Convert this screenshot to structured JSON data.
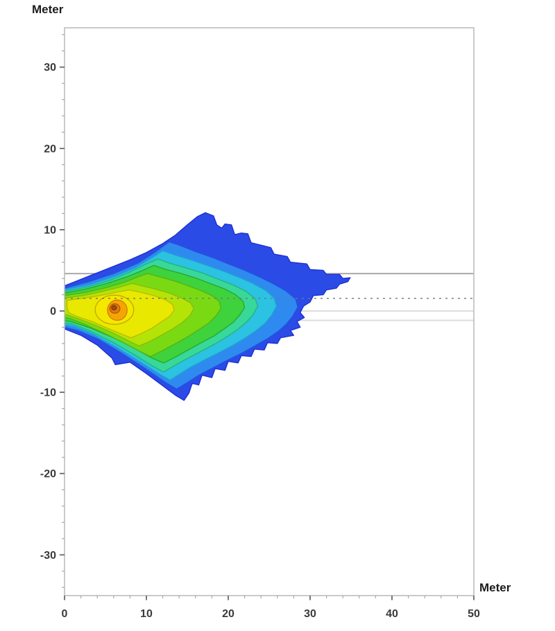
{
  "page": {
    "background": "#ffffff"
  },
  "chart_data": {
    "type": "heatmap",
    "subtype": "filled-contour-map",
    "title": "",
    "x_axis": {
      "label": "Meter",
      "min": 0,
      "max": 50,
      "minor_step": 2,
      "ticks": {
        "values": [
          0,
          10,
          20,
          30,
          40,
          50
        ],
        "labels": [
          "0",
          "10",
          "20",
          "30",
          "40",
          "50"
        ]
      }
    },
    "y_axis": {
      "label": "Meter",
      "min": -35,
      "max": 34.8,
      "minor_step": 2,
      "ticks": {
        "values": [
          30,
          20,
          10,
          0,
          -10,
          -20,
          -30
        ],
        "labels": [
          "30",
          "20",
          "10",
          "0",
          "-10",
          "-20",
          "-30"
        ]
      }
    },
    "reference_lines": [
      {
        "y": 4.6,
        "style": "solid",
        "color": "#a9a9a9",
        "width": 2,
        "layer": "under"
      },
      {
        "y": 0.0,
        "style": "solid",
        "color": "#dcdcdc",
        "width": 2,
        "layer": "under"
      },
      {
        "y": -1.15,
        "style": "solid",
        "color": "#dcdcdc",
        "width": 2,
        "layer": "under"
      },
      {
        "y": 1.55,
        "style": "dashed",
        "color": "#757575",
        "width": 1.4,
        "dash": "3 6",
        "layer": "over"
      }
    ],
    "peak": {
      "x": 6.1,
      "y": 0.3
    },
    "contours": [
      {
        "name": "band-1-blue",
        "fill": "#2b4be6",
        "stroke": "#1c2cd2",
        "points": [
          [
            0,
            3.1
          ],
          [
            2,
            3.9
          ],
          [
            4,
            4.7
          ],
          [
            6,
            5.5
          ],
          [
            8,
            6.3
          ],
          [
            10,
            7.2
          ],
          [
            12,
            8.3
          ],
          [
            13.5,
            9.3
          ],
          [
            15,
            10.6
          ],
          [
            16.2,
            11.6
          ],
          [
            17.2,
            12.1
          ],
          [
            18.2,
            11.7
          ],
          [
            18.6,
            10.6
          ],
          [
            19.2,
            10.2
          ],
          [
            19.6,
            10.7
          ],
          [
            20.4,
            10.6
          ],
          [
            20.8,
            9.4
          ],
          [
            21.6,
            9.6
          ],
          [
            22.4,
            9.5
          ],
          [
            22.8,
            8.4
          ],
          [
            24,
            8.1
          ],
          [
            25.2,
            7.8
          ],
          [
            25.6,
            7.0
          ],
          [
            27.2,
            6.7
          ],
          [
            27.6,
            6.0
          ],
          [
            29.6,
            5.8
          ],
          [
            30.0,
            5.1
          ],
          [
            31.6,
            5.0
          ],
          [
            32.0,
            4.5
          ],
          [
            33.6,
            4.5
          ],
          [
            34.0,
            4.0
          ],
          [
            34.9,
            4.1
          ],
          [
            34.6,
            3.6
          ],
          [
            33.6,
            3.3
          ],
          [
            33.2,
            2.8
          ],
          [
            32.0,
            2.6
          ],
          [
            31.6,
            2.0
          ],
          [
            30.4,
            1.9
          ],
          [
            30.0,
            1.1
          ],
          [
            29.2,
            0.6
          ],
          [
            28.8,
            -0.2
          ],
          [
            29.3,
            -0.8
          ],
          [
            28.4,
            -1.3
          ],
          [
            28.8,
            -2.0
          ],
          [
            27.6,
            -2.4
          ],
          [
            28.0,
            -3.0
          ],
          [
            26.4,
            -3.3
          ],
          [
            26.0,
            -4.0
          ],
          [
            24.8,
            -3.9
          ],
          [
            24.4,
            -4.8
          ],
          [
            23.2,
            -4.7
          ],
          [
            22.8,
            -5.6
          ],
          [
            21.6,
            -5.5
          ],
          [
            21.2,
            -6.4
          ],
          [
            20.0,
            -6.2
          ],
          [
            19.6,
            -7.3
          ],
          [
            18.4,
            -7.1
          ],
          [
            18.0,
            -8.2
          ],
          [
            16.8,
            -7.9
          ],
          [
            16.4,
            -9.1
          ],
          [
            15.6,
            -8.9
          ],
          [
            15.2,
            -10.1
          ],
          [
            14.6,
            -11.0
          ],
          [
            13.6,
            -10.4
          ],
          [
            12.0,
            -9.2
          ],
          [
            10.0,
            -7.7
          ],
          [
            8.0,
            -6.3
          ],
          [
            6.2,
            -6.6
          ],
          [
            5.8,
            -5.8
          ],
          [
            4.0,
            -4.2
          ],
          [
            2.0,
            -3.0
          ],
          [
            0,
            -2.2
          ]
        ]
      },
      {
        "name": "band-2-skyblue",
        "fill": "#2f8af0",
        "stroke": "#2254dc",
        "points": [
          [
            0,
            2.8
          ],
          [
            3,
            3.6
          ],
          [
            6,
            4.6
          ],
          [
            9,
            5.9
          ],
          [
            11,
            7.2
          ],
          [
            12.8,
            8.5
          ],
          [
            14,
            8.1
          ],
          [
            16,
            7.3
          ],
          [
            18,
            6.6
          ],
          [
            20,
            5.8
          ],
          [
            22,
            5.0
          ],
          [
            24,
            4.1
          ],
          [
            25.6,
            3.3
          ],
          [
            27,
            2.5
          ],
          [
            28.2,
            1.5
          ],
          [
            28.5,
            0.5
          ],
          [
            27.9,
            -0.6
          ],
          [
            27.1,
            -1.6
          ],
          [
            26.1,
            -2.5
          ],
          [
            24.8,
            -3.4
          ],
          [
            23.2,
            -4.3
          ],
          [
            21.6,
            -5.2
          ],
          [
            19.8,
            -6.1
          ],
          [
            18.1,
            -7.0
          ],
          [
            16.4,
            -7.9
          ],
          [
            15.0,
            -8.8
          ],
          [
            13.7,
            -9.6
          ],
          [
            12.2,
            -8.7
          ],
          [
            9.6,
            -6.9
          ],
          [
            7.0,
            -5.2
          ],
          [
            4.2,
            -3.5
          ],
          [
            1.6,
            -2.4
          ],
          [
            0,
            -2.0
          ]
        ]
      },
      {
        "name": "band-3-cyan",
        "fill": "#2cc2e2",
        "stroke": "#1fa3cf",
        "points": [
          [
            0,
            2.6
          ],
          [
            3,
            3.2
          ],
          [
            6,
            4.2
          ],
          [
            8.6,
            5.3
          ],
          [
            10.6,
            6.5
          ],
          [
            12.0,
            7.4
          ],
          [
            13.4,
            6.9
          ],
          [
            15.4,
            6.3
          ],
          [
            17.4,
            5.6
          ],
          [
            19.4,
            4.9
          ],
          [
            21.4,
            4.1
          ],
          [
            23.0,
            3.4
          ],
          [
            24.6,
            2.5
          ],
          [
            25.6,
            1.6
          ],
          [
            25.9,
            0.6
          ],
          [
            25.3,
            -0.5
          ],
          [
            24.5,
            -1.5
          ],
          [
            23.4,
            -2.4
          ],
          [
            22.1,
            -3.3
          ],
          [
            20.6,
            -4.2
          ],
          [
            18.9,
            -5.1
          ],
          [
            17.1,
            -6.0
          ],
          [
            15.4,
            -6.9
          ],
          [
            14.0,
            -7.8
          ],
          [
            12.9,
            -8.5
          ],
          [
            11.5,
            -7.7
          ],
          [
            9.0,
            -6.1
          ],
          [
            6.4,
            -4.5
          ],
          [
            3.6,
            -2.9
          ],
          [
            1.2,
            -1.9
          ],
          [
            0,
            -1.7
          ]
        ]
      },
      {
        "name": "band-4-springgreen",
        "fill": "#37d89a",
        "stroke": "#26b078",
        "points": [
          [
            0,
            2.4
          ],
          [
            3,
            3.0
          ],
          [
            5.6,
            3.8
          ],
          [
            8.0,
            4.8
          ],
          [
            10.0,
            5.8
          ],
          [
            11.4,
            6.4
          ],
          [
            12.8,
            5.9
          ],
          [
            14.8,
            5.3
          ],
          [
            16.8,
            4.7
          ],
          [
            18.8,
            3.9
          ],
          [
            20.6,
            3.2
          ],
          [
            22.2,
            2.4
          ],
          [
            23.3,
            1.5
          ],
          [
            23.6,
            0.6
          ],
          [
            23.0,
            -0.5
          ],
          [
            22.2,
            -1.4
          ],
          [
            21.1,
            -2.3
          ],
          [
            19.8,
            -3.2
          ],
          [
            18.3,
            -4.1
          ],
          [
            16.6,
            -5.0
          ],
          [
            14.9,
            -5.9
          ],
          [
            13.3,
            -6.8
          ],
          [
            12.1,
            -7.5
          ],
          [
            10.8,
            -6.8
          ],
          [
            8.4,
            -5.3
          ],
          [
            6.0,
            -3.9
          ],
          [
            3.2,
            -2.5
          ],
          [
            0.9,
            -1.6
          ],
          [
            0,
            -1.5
          ]
        ]
      },
      {
        "name": "band-5-green",
        "fill": "#3ed23d",
        "stroke": "#2ba42a",
        "points": [
          [
            0,
            2.2
          ],
          [
            2.6,
            2.7
          ],
          [
            5.2,
            3.4
          ],
          [
            7.6,
            4.2
          ],
          [
            9.6,
            5.0
          ],
          [
            10.9,
            5.6
          ],
          [
            12.4,
            5.1
          ],
          [
            14.3,
            4.6
          ],
          [
            16.2,
            4.0
          ],
          [
            18.0,
            3.3
          ],
          [
            19.6,
            2.7
          ],
          [
            20.9,
            2.0
          ],
          [
            21.8,
            1.2
          ],
          [
            22.0,
            0.4
          ],
          [
            21.4,
            -0.5
          ],
          [
            20.6,
            -1.4
          ],
          [
            19.5,
            -2.2
          ],
          [
            18.2,
            -3.1
          ],
          [
            16.7,
            -3.9
          ],
          [
            15.1,
            -4.8
          ],
          [
            13.5,
            -5.7
          ],
          [
            12.1,
            -6.4
          ],
          [
            10.7,
            -5.8
          ],
          [
            8.4,
            -4.5
          ],
          [
            6.0,
            -3.3
          ],
          [
            3.2,
            -2.1
          ],
          [
            0.8,
            -1.3
          ],
          [
            0,
            -1.2
          ]
        ]
      },
      {
        "name": "band-6-greenyellow",
        "fill": "#79da14",
        "stroke": "#58b00e",
        "points": [
          [
            0,
            1.9
          ],
          [
            2.6,
            2.3
          ],
          [
            5.2,
            2.9
          ],
          [
            7.2,
            3.5
          ],
          [
            9.0,
            4.2
          ],
          [
            10.1,
            4.6
          ],
          [
            11.6,
            4.2
          ],
          [
            13.4,
            3.7
          ],
          [
            15.1,
            3.1
          ],
          [
            16.7,
            2.5
          ],
          [
            18.0,
            1.9
          ],
          [
            18.9,
            1.2
          ],
          [
            19.1,
            0.3
          ],
          [
            18.5,
            -0.6
          ],
          [
            17.6,
            -1.5
          ],
          [
            16.4,
            -2.3
          ],
          [
            15.0,
            -3.2
          ],
          [
            13.4,
            -4.1
          ],
          [
            11.9,
            -4.9
          ],
          [
            10.5,
            -5.6
          ],
          [
            9.3,
            -5.0
          ],
          [
            7.2,
            -3.9
          ],
          [
            5.0,
            -2.8
          ],
          [
            2.6,
            -1.7
          ],
          [
            0.6,
            -0.9
          ],
          [
            0,
            -0.8
          ]
        ]
      },
      {
        "name": "band-7-chartreuse",
        "fill": "#b4e308",
        "stroke": "#8cb906",
        "points": [
          [
            0,
            1.6
          ],
          [
            2.3,
            1.9
          ],
          [
            4.6,
            2.4
          ],
          [
            6.6,
            2.9
          ],
          [
            8.3,
            3.4
          ],
          [
            9.4,
            3.1
          ],
          [
            11.1,
            2.7
          ],
          [
            12.8,
            2.2
          ],
          [
            14.3,
            1.6
          ],
          [
            15.4,
            1.0
          ],
          [
            15.8,
            0.3
          ],
          [
            15.3,
            -0.6
          ],
          [
            14.4,
            -1.4
          ],
          [
            13.2,
            -2.2
          ],
          [
            11.8,
            -3.0
          ],
          [
            10.3,
            -3.8
          ],
          [
            9.1,
            -4.3
          ],
          [
            7.9,
            -3.7
          ],
          [
            5.9,
            -2.7
          ],
          [
            3.9,
            -1.8
          ],
          [
            1.8,
            -1.0
          ],
          [
            0.4,
            -0.5
          ],
          [
            0,
            -0.4
          ]
        ]
      },
      {
        "name": "band-8-yellow",
        "fill": "#e9e800",
        "stroke": "#bdba00",
        "points": [
          [
            0.3,
            1.3
          ],
          [
            2.4,
            1.6
          ],
          [
            4.4,
            1.9
          ],
          [
            6.3,
            2.3
          ],
          [
            7.9,
            2.6
          ],
          [
            9.3,
            2.3
          ],
          [
            10.9,
            1.9
          ],
          [
            12.3,
            1.4
          ],
          [
            13.2,
            0.8
          ],
          [
            13.4,
            0.1
          ],
          [
            12.9,
            -0.6
          ],
          [
            11.9,
            -1.3
          ],
          [
            10.7,
            -2.1
          ],
          [
            9.3,
            -2.8
          ],
          [
            8.1,
            -3.3
          ],
          [
            6.9,
            -2.8
          ],
          [
            5.2,
            -2.1
          ],
          [
            3.4,
            -1.3
          ],
          [
            1.6,
            -0.7
          ],
          [
            0.5,
            -0.2
          ],
          [
            0.3,
            0.5
          ]
        ]
      },
      {
        "name": "band-9-yellow-core",
        "fill": "#f4e700",
        "stroke": "#c2a800",
        "ellipse": [
          6.1,
          0.15,
          2.35,
          1.8
        ]
      },
      {
        "name": "band-10-orange",
        "fill": "#f5a503",
        "stroke": "#d17e02",
        "ellipse": [
          6.45,
          0.1,
          1.2,
          1.25
        ]
      },
      {
        "name": "band-11-deep-orange",
        "fill": "#e07b0b",
        "stroke": "#b25505",
        "ellipse": [
          6.15,
          0.3,
          0.62,
          0.58
        ]
      },
      {
        "name": "band-12-peak",
        "fill": "#9c4f10",
        "stroke": "#7d3a0a",
        "ellipse": [
          6.05,
          0.4,
          0.3,
          0.27
        ]
      }
    ]
  }
}
